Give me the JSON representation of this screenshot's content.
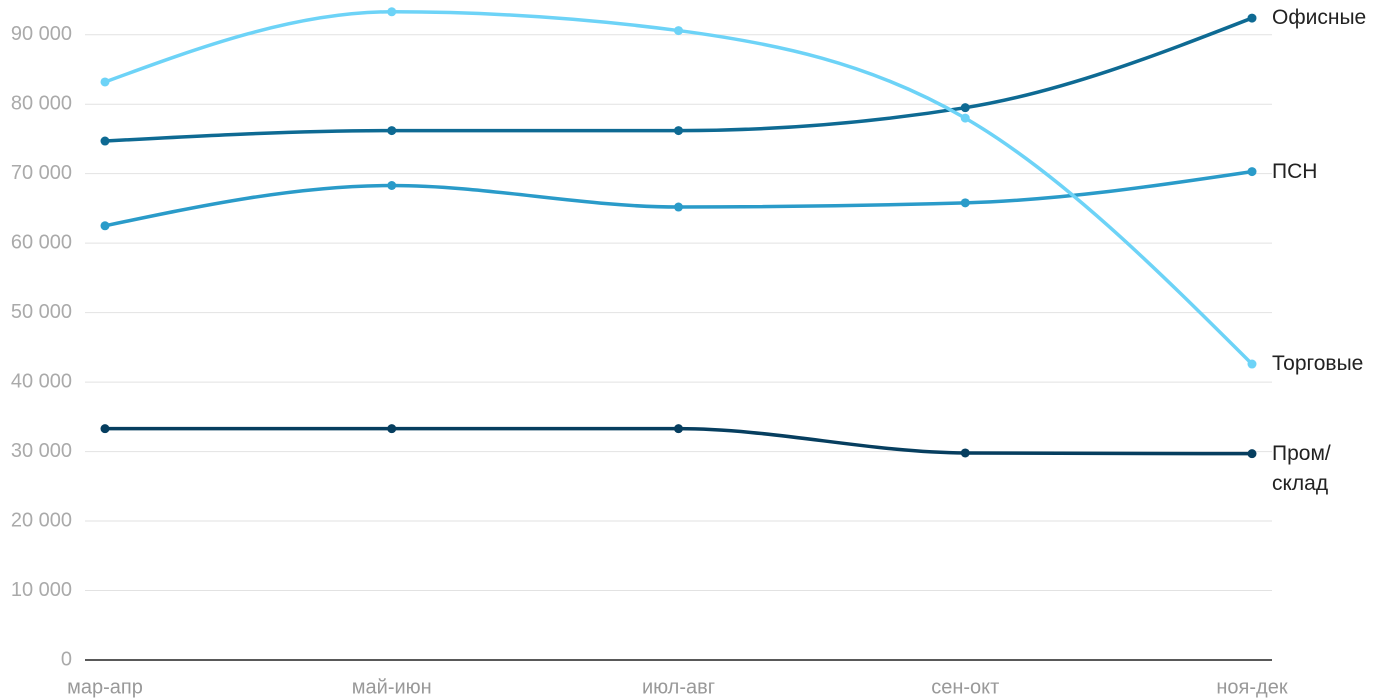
{
  "chart_data": {
    "type": "line",
    "categories": [
      "мар-апр",
      "май-июн",
      "июл-авг",
      "сен-окт",
      "ноя-дек"
    ],
    "series": [
      {
        "name": "Офисные",
        "color": "#0e6a93",
        "values": [
          74700,
          76200,
          76200,
          79500,
          92400
        ]
      },
      {
        "name": "ПСН",
        "color": "#2a9bc9",
        "values": [
          62500,
          68300,
          65200,
          65800,
          70300
        ]
      },
      {
        "name": "Торговые",
        "color": "#6dd3f7",
        "values": [
          83200,
          93300,
          90600,
          78000,
          42600
        ]
      },
      {
        "name": "Пром/ склад",
        "color": "#063e5f",
        "values": [
          33300,
          33300,
          33300,
          29800,
          29700
        ]
      }
    ],
    "ylim": [
      0,
      95000
    ],
    "yticks": [
      0,
      {
        "value": 10000,
        "label": "10 000"
      },
      {
        "value": 20000,
        "label": "20 000"
      },
      {
        "value": 30000,
        "label": "30 000"
      },
      {
        "value": 40000,
        "label": "40 000"
      },
      {
        "value": 50000,
        "label": "50 000"
      },
      {
        "value": 60000,
        "label": "60 000"
      },
      {
        "value": 70000,
        "label": "70 000"
      },
      {
        "value": 80000,
        "label": "80 000"
      },
      {
        "value": 90000,
        "label": "90 000"
      }
    ],
    "grid": true
  }
}
